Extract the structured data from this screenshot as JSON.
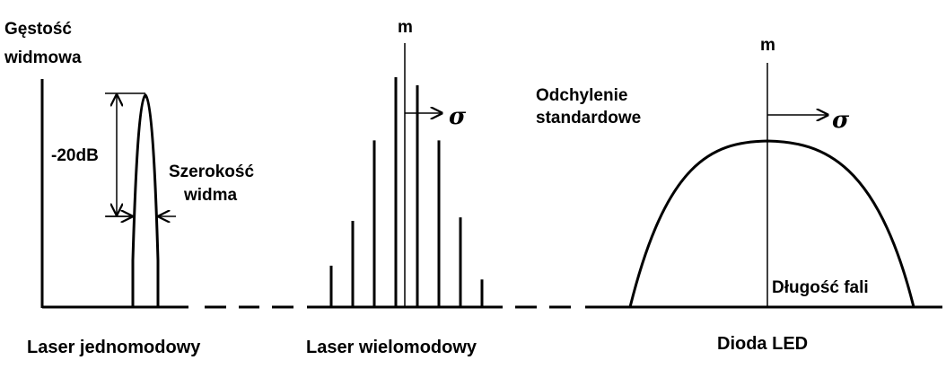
{
  "axis_title": {
    "line1": "Gęstość",
    "line2": "widmowa"
  },
  "single_mode": {
    "attenuation_label": "-20dB",
    "width_label_line1": "Szerokość",
    "width_label_line2": "widma",
    "caption": "Laser jednomodowy"
  },
  "multi_mode": {
    "mean_label": "m",
    "sigma_label": "σ",
    "sd_label_line1": "Odchylenie",
    "sd_label_line2": "standardowe",
    "caption": "Laser wielomodowy",
    "mode_levels": [
      0.18,
      0.375,
      0.725,
      1.0,
      0.965,
      0.725,
      0.39,
      0.12
    ]
  },
  "led": {
    "mean_label": "m",
    "sigma_label": "σ",
    "axis_label": "Długość fali",
    "caption": "Dioda LED"
  },
  "colors": {
    "ink": "#000000",
    "background": "#ffffff"
  }
}
